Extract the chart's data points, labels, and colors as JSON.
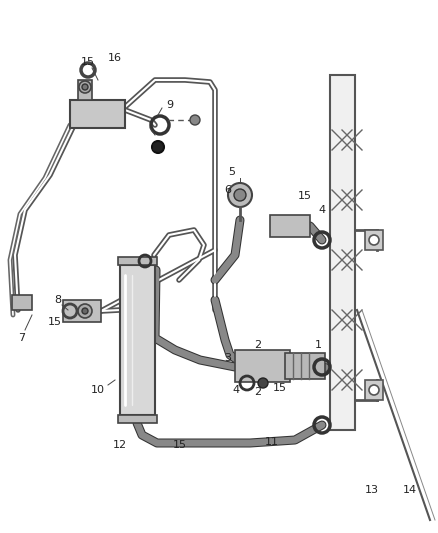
{
  "background_color": "#ffffff",
  "line_color": "#555555",
  "pipe_color": "#666666",
  "fig_width": 4.38,
  "fig_height": 5.33,
  "dpi": 100
}
